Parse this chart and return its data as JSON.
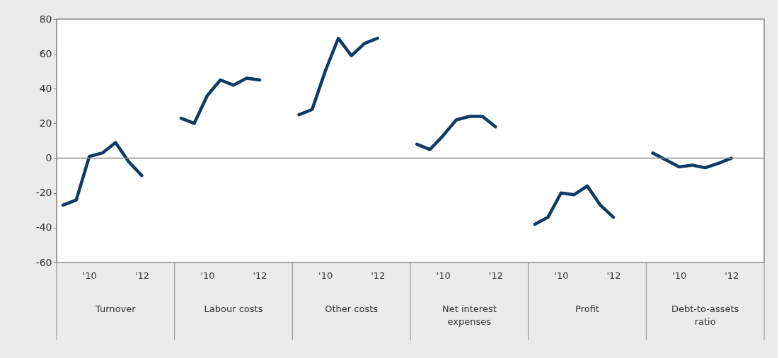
{
  "chart_data": {
    "type": "line",
    "categories": [
      null,
      null,
      "'10",
      null,
      null,
      null,
      "'12",
      null,
      null,
      null,
      null,
      "'10",
      null,
      null,
      null,
      "'12",
      null,
      null,
      null,
      null,
      "'10",
      null,
      null,
      null,
      "'12",
      null,
      null,
      null,
      null,
      "'10",
      null,
      null,
      null,
      "'12",
      null,
      null,
      null,
      null,
      "'10",
      null,
      null,
      null,
      "'12",
      null,
      null,
      null,
      null,
      "'10",
      null,
      null,
      null,
      "'12",
      null,
      null
    ],
    "series": [
      {
        "color": "#0d3a66",
        "values": [
          -27,
          -24,
          1,
          3,
          9,
          -2,
          -10,
          null,
          null,
          23,
          20,
          36,
          45,
          42,
          46,
          45,
          null,
          null,
          25,
          28,
          50,
          69,
          59,
          66,
          69,
          null,
          null,
          8,
          5,
          13,
          22,
          24,
          24,
          18,
          null,
          null,
          -38,
          -34,
          -20,
          -21,
          -16,
          -27,
          -34,
          null,
          null,
          3,
          -1,
          -5,
          -4,
          -5.5,
          -3,
          0,
          null,
          null
        ]
      }
    ],
    "annotations": [
      "Turnover",
      "Labour costs",
      "Other costs",
      "Net interest expenses",
      "Profit",
      "Debt-to-assets ratio"
    ],
    "ylim": [
      -60,
      80
    ],
    "yticks": [
      -60,
      -40,
      -20,
      0,
      20,
      40,
      60,
      80
    ],
    "ref_lines": [
      {
        "axis": "y",
        "value": 0,
        "color": "#8c8c8c"
      }
    ],
    "grid": false,
    "marker": "none",
    "line_style": "solid"
  }
}
